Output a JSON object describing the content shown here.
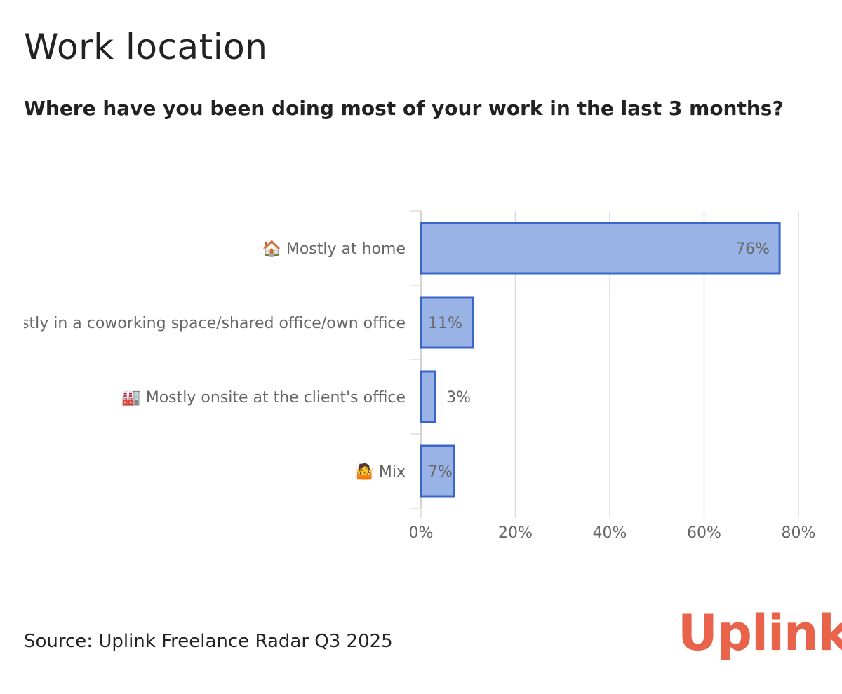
{
  "header": {
    "title": "Work location",
    "subtitle": "Where have you been doing most of your work in the last 3 months?"
  },
  "footer": {
    "source": "Source: Uplink Freelance Radar Q3 2025",
    "logo": "Uplink"
  },
  "colors": {
    "bar_fill": "#9ab3e6",
    "bar_stroke": "#3a66cc",
    "grid": "#dddddd",
    "text": "#666666",
    "brand": "#e8634a"
  },
  "chart_data": {
    "type": "bar",
    "orientation": "horizontal",
    "categories": [
      "🏠 Mostly at home",
      "🏢 Mostly in a coworking space/shared office/own office",
      "🏭 Mostly onsite at the client's office",
      "🤷 Mix"
    ],
    "values": [
      76,
      11,
      3,
      7
    ],
    "value_labels": [
      "76%",
      "11%",
      "3%",
      "7%"
    ],
    "xlim": [
      0,
      80
    ],
    "xticks": [
      0,
      20,
      40,
      60,
      80
    ],
    "xtick_labels": [
      "0%",
      "20%",
      "40%",
      "60%",
      "80%"
    ],
    "grid": true,
    "title": "",
    "xlabel": "",
    "ylabel": ""
  }
}
